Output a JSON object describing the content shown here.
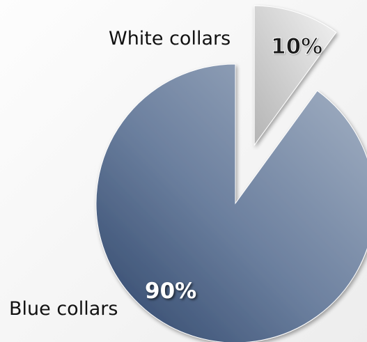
{
  "chart_data": {
    "type": "pie",
    "title": "",
    "categories": [
      "White collars",
      "Blue collars"
    ],
    "values": [
      10,
      90
    ],
    "value_labels": [
      "10%",
      "90%"
    ],
    "exploded": "White collars",
    "colors": {
      "White collars": [
        "#f0f0f0",
        "#bdbdbd"
      ],
      "Blue collars": [
        "#a7b4c6",
        "#2c4368"
      ]
    },
    "legend": "none"
  }
}
